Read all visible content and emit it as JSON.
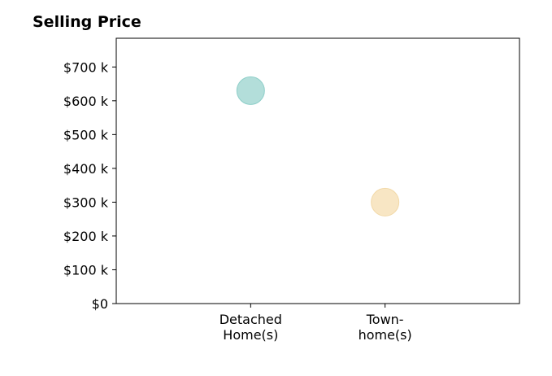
{
  "chart_data": {
    "type": "scatter",
    "title": "Selling Price",
    "categories": [
      "Detached\nHome(s)",
      "Town-\nhome(s)"
    ],
    "values": [
      630000,
      300000
    ],
    "point_colors": [
      "#b3deda",
      "#f8e6c4"
    ],
    "point_edge_colors": [
      "#8fcfc9",
      "#f2d9a8"
    ],
    "y_ticks": [
      0,
      100000,
      200000,
      300000,
      400000,
      500000,
      600000,
      700000
    ],
    "y_tick_labels": [
      "$0",
      "$100 k",
      "$200 k",
      "$300 k",
      "$400 k",
      "$500 k",
      "$600 k",
      "$700 k"
    ],
    "ylim": [
      0,
      785000
    ],
    "x_categories_range": [
      -1,
      2
    ],
    "xlabel": "",
    "ylabel": "",
    "grid": false,
    "legend": "none"
  }
}
